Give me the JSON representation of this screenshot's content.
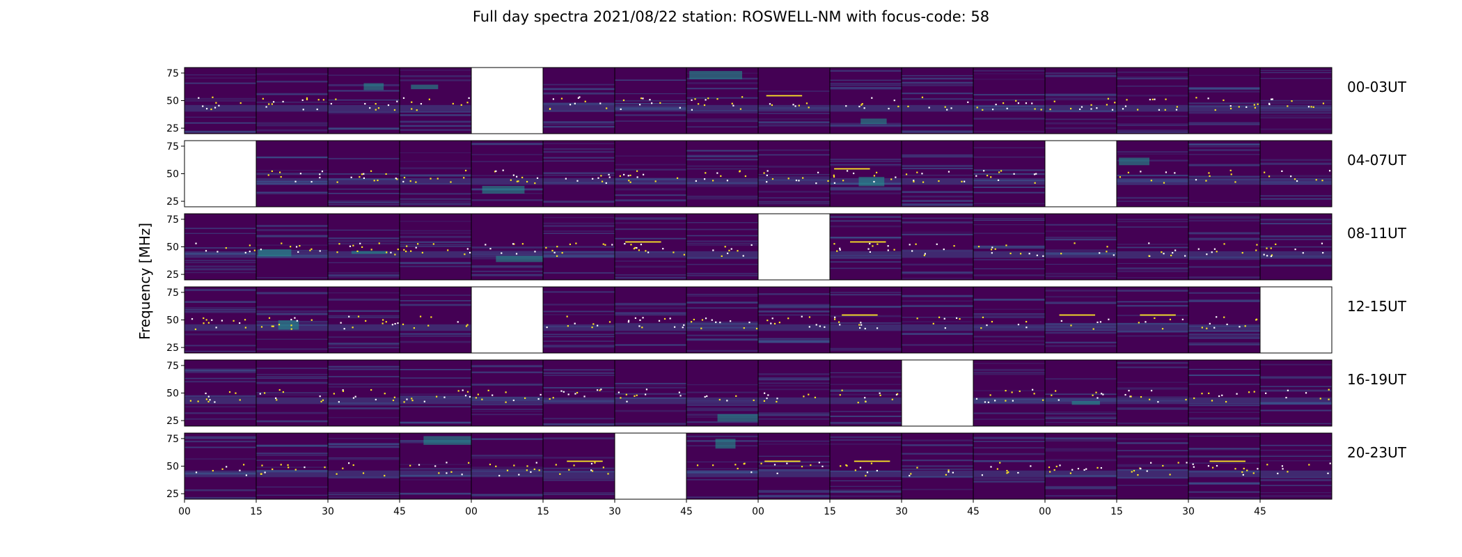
{
  "chart_data": {
    "type": "heatmap",
    "title": "Full day spectra 2021/08/22 station: ROSWELL-NM with focus-code: 58",
    "ylabel": "Frequency [MHz]",
    "ylim": [
      20,
      80
    ],
    "yticks": [
      25,
      50,
      75
    ],
    "xticks": [
      "00",
      "15",
      "30",
      "45",
      "00",
      "15",
      "30",
      "45",
      "00",
      "15",
      "30",
      "45",
      "00",
      "15",
      "30",
      "45"
    ],
    "colormap": "viridis",
    "panels_per_row": 16,
    "panel_minutes": 15,
    "rows": [
      {
        "label": "00-03UT",
        "missing_panels": [
          4
        ]
      },
      {
        "label": "04-07UT",
        "missing_panels": [
          0,
          12
        ]
      },
      {
        "label": "08-11UT",
        "missing_panels": [
          8
        ]
      },
      {
        "label": "12-15UT",
        "missing_panels": [
          4,
          15
        ]
      },
      {
        "label": "16-19UT",
        "missing_panels": [
          10
        ]
      },
      {
        "label": "20-23UT",
        "missing_panels": [
          6
        ]
      }
    ]
  },
  "colors": {
    "background": "#440154",
    "mid": "#3b528b",
    "teal": "#21918c",
    "bright": "#fde725",
    "missing": "#ffffff"
  }
}
